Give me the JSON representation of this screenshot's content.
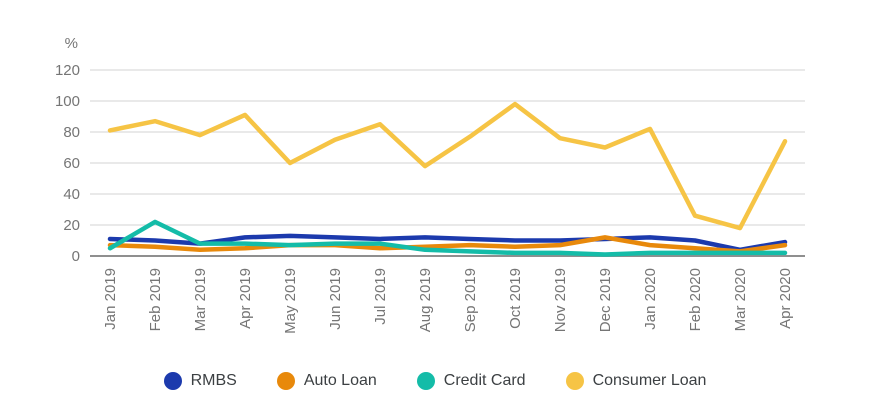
{
  "chart_data": {
    "type": "line",
    "title": "",
    "unit_label": "%",
    "categories": [
      "Jan 2019",
      "Feb 2019",
      "Mar 2019",
      "Apr 2019",
      "May 2019",
      "Jun 2019",
      "Jul 2019",
      "Aug 2019",
      "Sep 2019",
      "Oct 2019",
      "Nov 2019",
      "Dec 2019",
      "Jan 2020",
      "Feb 2020",
      "Mar 2020",
      "Apr 2020"
    ],
    "series": [
      {
        "name": "RMBS",
        "color": "#1c3aad",
        "values": [
          11,
          10,
          8,
          12,
          13,
          12,
          11,
          12,
          11,
          10,
          10,
          11,
          12,
          10,
          4,
          9
        ]
      },
      {
        "name": "Auto Loan",
        "color": "#e8890b",
        "values": [
          7,
          6,
          4,
          5,
          7,
          7,
          5,
          6,
          7,
          6,
          7,
          12,
          7,
          5,
          3,
          7
        ]
      },
      {
        "name": "Credit Card",
        "color": "#14bca8",
        "values": [
          5,
          22,
          8,
          8,
          7,
          8,
          8,
          4,
          3,
          2,
          2,
          1,
          2,
          2,
          2,
          2
        ]
      },
      {
        "name": "Consumer Loan",
        "color": "#f6c445",
        "values": [
          81,
          87,
          78,
          91,
          60,
          75,
          85,
          58,
          77,
          98,
          76,
          70,
          82,
          26,
          18,
          74
        ]
      }
    ],
    "yticks": [
      0,
      20,
      40,
      60,
      80,
      100,
      120
    ],
    "ylim": [
      0,
      130
    ],
    "grid": true,
    "legend_position": "bottom",
    "colors": {
      "gridline": "#dcdcdc",
      "zero_line": "#8f8f8f",
      "axis_text": "#757575"
    }
  }
}
